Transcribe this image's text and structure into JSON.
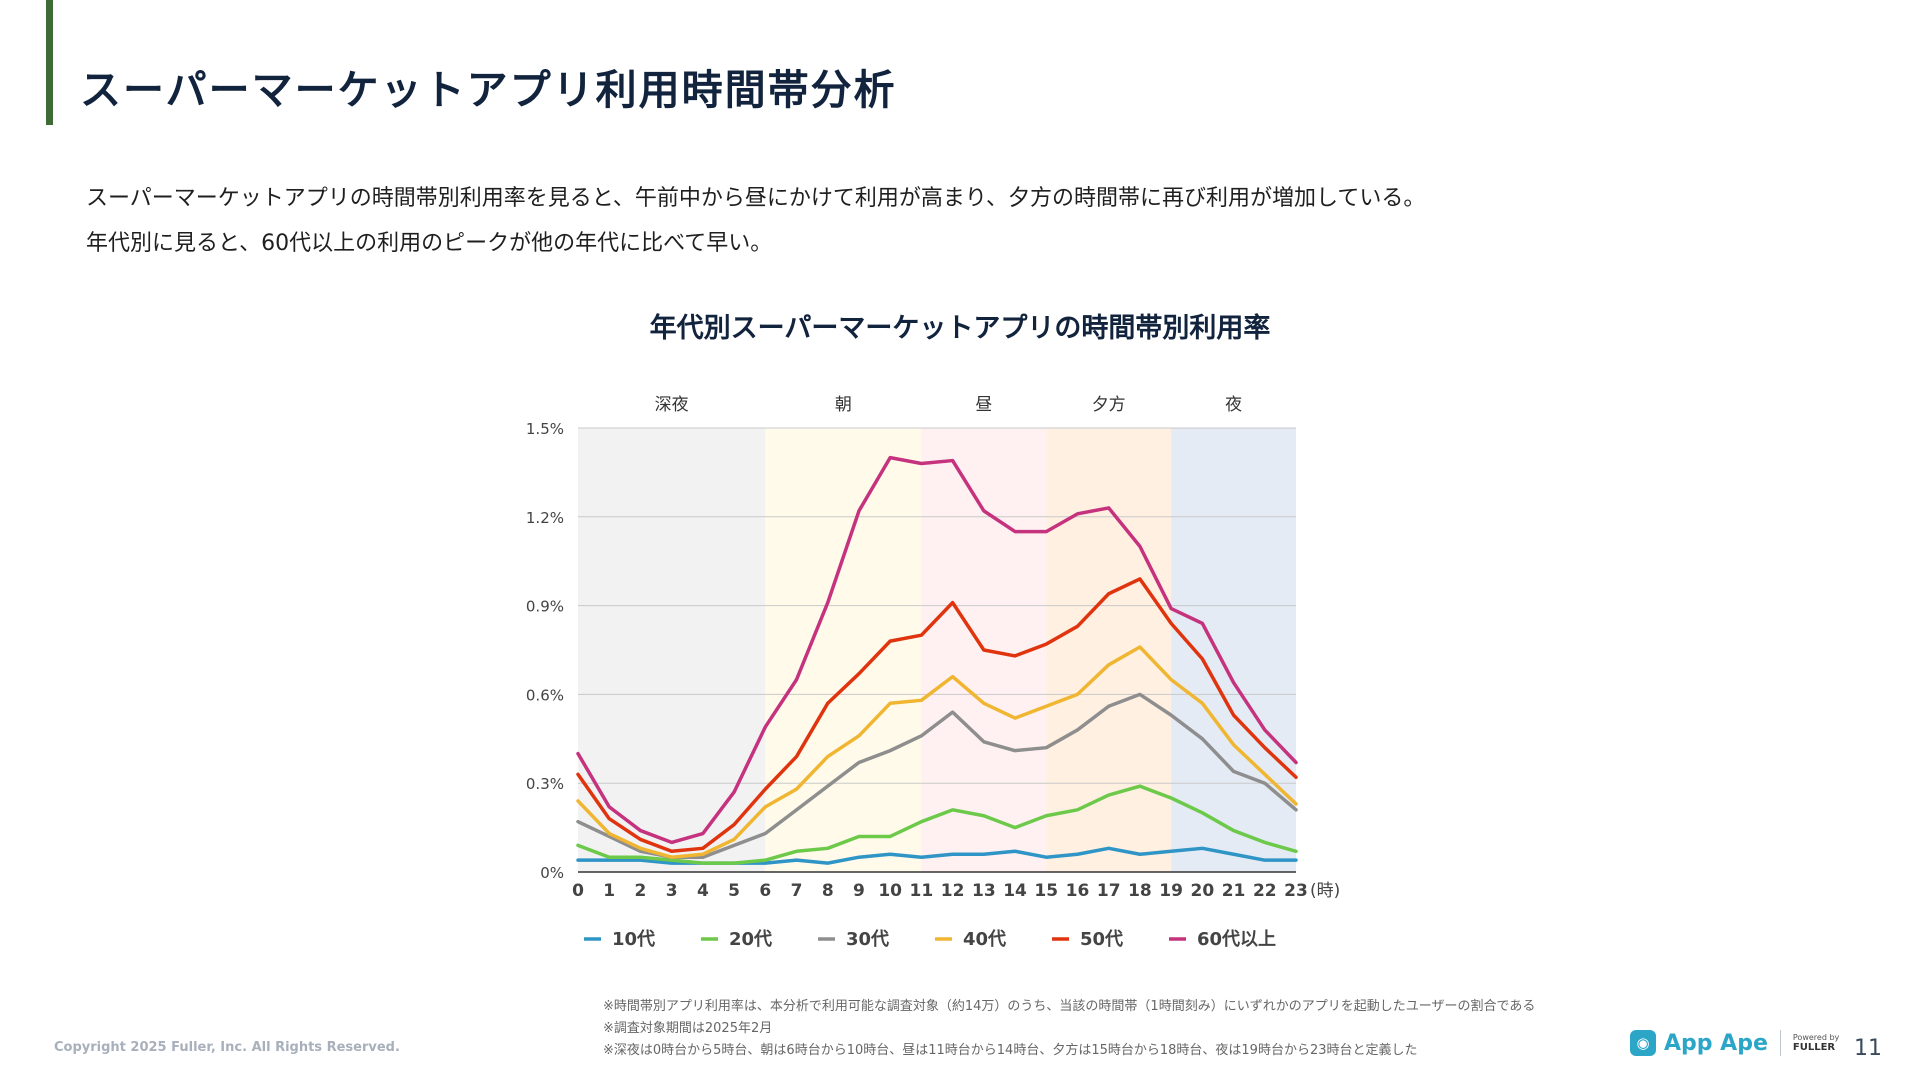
{
  "page": {
    "title": "スーパーマーケットアプリ利用時間帯分析",
    "description": [
      "スーパーマーケットアプリの時間帯別利用率を見ると、午前中から昼にかけて利用が高まり、夕方の時間帯に再び利用が増加している。",
      "年代別に見ると、60代以上の利用のピークが他の年代に比べて早い。"
    ],
    "footnotes": [
      "※時間帯別アプリ利用率は、本分析で利用可能な調査対象（約14万）のうち、当該の時間帯（1時間刻み）にいずれかのアプリを起動したユーザーの割合である",
      "※調査対象期間は2025年2月",
      "※深夜は0時台から5時台、朝は6時台から10時台、昼は11時台から14時台、夕方は15時台から18時台、夜は19時台から23時台と定義した"
    ],
    "copyright": "Copyright 2025 Fuller, Inc. All Rights Reserved.",
    "logo": {
      "name": "App Ape",
      "powered_by": "Powered by",
      "company": "FULLER",
      "icon": "app-ape-icon"
    },
    "page_number": "11"
  },
  "chart_data": {
    "type": "line",
    "title": "年代別スーパーマーケットアプリの時間帯別利用率",
    "xlabel": "(時)",
    "ylabel": "",
    "ylim": [
      0,
      1.5
    ],
    "yticks": [
      0,
      0.3,
      0.6,
      0.9,
      1.2,
      1.5
    ],
    "ytick_labels": [
      "0%",
      "0.3%",
      "0.6%",
      "0.9%",
      "1.2%",
      "1.5%"
    ],
    "grid": true,
    "legend": "bottom",
    "x": [
      0,
      1,
      2,
      3,
      4,
      5,
      6,
      7,
      8,
      9,
      10,
      11,
      12,
      13,
      14,
      15,
      16,
      17,
      18,
      19,
      20,
      21,
      22,
      23
    ],
    "bands": [
      {
        "label": "深夜",
        "start": 0,
        "end": 6,
        "color": "#f2f2f2"
      },
      {
        "label": "朝",
        "start": 6,
        "end": 11,
        "color": "#fffaea"
      },
      {
        "label": "昼",
        "start": 11,
        "end": 15,
        "color": "#fff1f1"
      },
      {
        "label": "夕方",
        "start": 15,
        "end": 19,
        "color": "#fff0e2"
      },
      {
        "label": "夜",
        "start": 19,
        "end": 23,
        "color": "#e4ebf4"
      }
    ],
    "series": [
      {
        "name": "10代",
        "color": "#2f95c6",
        "values": [
          0.04,
          0.04,
          0.04,
          0.03,
          0.03,
          0.03,
          0.03,
          0.04,
          0.03,
          0.05,
          0.06,
          0.05,
          0.06,
          0.06,
          0.07,
          0.05,
          0.06,
          0.08,
          0.06,
          0.07,
          0.08,
          0.06,
          0.04,
          0.04
        ]
      },
      {
        "name": "20代",
        "color": "#6cc94a",
        "values": [
          0.09,
          0.05,
          0.05,
          0.04,
          0.03,
          0.03,
          0.04,
          0.07,
          0.08,
          0.12,
          0.12,
          0.17,
          0.21,
          0.19,
          0.15,
          0.19,
          0.21,
          0.26,
          0.29,
          0.25,
          0.2,
          0.14,
          0.1,
          0.07
        ]
      },
      {
        "name": "30代",
        "color": "#8e8e8e",
        "values": [
          0.17,
          0.12,
          0.07,
          0.05,
          0.05,
          0.09,
          0.13,
          0.21,
          0.29,
          0.37,
          0.41,
          0.46,
          0.54,
          0.44,
          0.41,
          0.42,
          0.48,
          0.56,
          0.6,
          0.53,
          0.45,
          0.34,
          0.3,
          0.21
        ]
      },
      {
        "name": "40代",
        "color": "#f0b632",
        "values": [
          0.24,
          0.13,
          0.08,
          0.05,
          0.06,
          0.11,
          0.22,
          0.28,
          0.39,
          0.46,
          0.57,
          0.58,
          0.66,
          0.57,
          0.52,
          0.56,
          0.6,
          0.7,
          0.76,
          0.65,
          0.57,
          0.43,
          0.33,
          0.23
        ]
      },
      {
        "name": "50代",
        "color": "#e0340f",
        "values": [
          0.33,
          0.18,
          0.11,
          0.07,
          0.08,
          0.16,
          0.28,
          0.39,
          0.57,
          0.67,
          0.78,
          0.8,
          0.91,
          0.75,
          0.73,
          0.77,
          0.83,
          0.94,
          0.99,
          0.84,
          0.72,
          0.53,
          0.42,
          0.32
        ]
      },
      {
        "name": "60代以上",
        "color": "#c5337f",
        "values": [
          0.4,
          0.22,
          0.14,
          0.1,
          0.13,
          0.27,
          0.49,
          0.65,
          0.91,
          1.22,
          1.4,
          1.38,
          1.39,
          1.22,
          1.15,
          1.15,
          1.21,
          1.23,
          1.1,
          0.89,
          0.84,
          0.64,
          0.48,
          0.37
        ]
      }
    ]
  }
}
